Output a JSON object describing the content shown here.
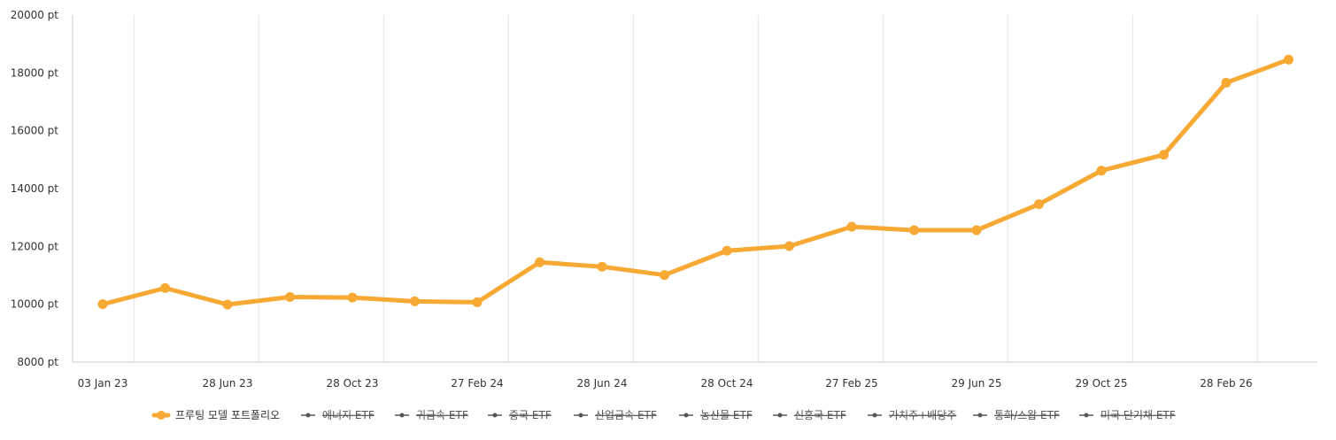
{
  "chart_data": {
    "type": "line",
    "x": [
      "03 Jan 23",
      "01 Apr 23",
      "28 Jun 23",
      "01 Sep 23",
      "28 Oct 23",
      "01 Jan 24",
      "27 Feb 24",
      "01 May 24",
      "28 Jun 24",
      "01 Sep 24",
      "28 Oct 24",
      "01 Jan 25",
      "27 Feb 25",
      "01 May 25",
      "29 Jun 25",
      "01 Sep 25",
      "29 Oct 25",
      "01 Jan 26",
      "28 Feb 26",
      "01 May 26"
    ],
    "x_tick_labels": [
      "03 Jan 23",
      "28 Jun 23",
      "28 Oct 23",
      "27 Feb 24",
      "28 Jun 24",
      "28 Oct 24",
      "27 Feb 25",
      "29 Jun 25",
      "29 Oct 25",
      "28 Feb 26"
    ],
    "series": [
      {
        "name": "프루팅 모델 포트폴리오",
        "color": "#f7a933",
        "visible": true,
        "values": [
          10000,
          10560,
          9990,
          10250,
          10230,
          10100,
          10070,
          11450,
          11300,
          11010,
          11850,
          12010,
          12680,
          12560,
          12560,
          13460,
          14620,
          15170,
          17660,
          18460
        ]
      },
      {
        "name": "에너지 ETF",
        "visible": false
      },
      {
        "name": "귀금속 ETF",
        "visible": false
      },
      {
        "name": "중국 ETF",
        "visible": false
      },
      {
        "name": "산업금속 ETF",
        "visible": false
      },
      {
        "name": "농산물 ETF",
        "visible": false
      },
      {
        "name": "신흥국 ETF",
        "visible": false
      },
      {
        "name": "가치주+배당주",
        "visible": false
      },
      {
        "name": "통화/스왑 ETF",
        "visible": false
      },
      {
        "name": "미국 단기채 ETF",
        "visible": false
      }
    ],
    "y_ticks": [
      "8000 pt",
      "10000 pt",
      "12000 pt",
      "14000 pt",
      "16000 pt",
      "18000 pt",
      "20000 pt"
    ],
    "ylim": [
      8000,
      20000
    ],
    "grid": "vertical",
    "legend_position": "bottom",
    "hidden_series_color": "#555555",
    "grid_color": "#e3e3e3",
    "axis_color": "#cccccc"
  }
}
